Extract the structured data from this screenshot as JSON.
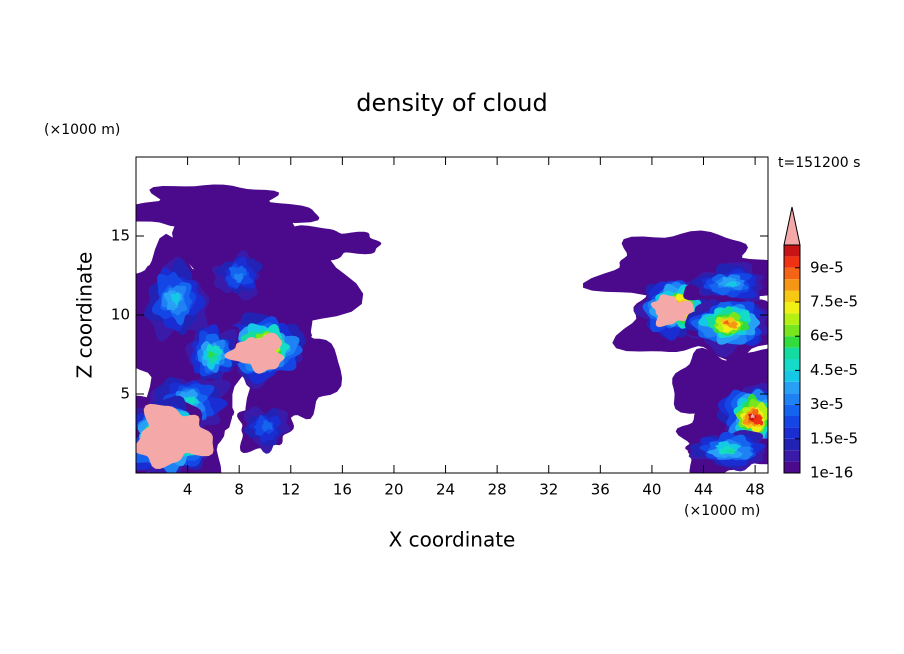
{
  "chart_data": {
    "type": "contour",
    "title": "density of cloud",
    "xlabel": "X coordinate",
    "ylabel": "Z coordinate",
    "x_unit": "(×1000 m)",
    "y_unit": "(×1000 m)",
    "time_label": "t=151200 s",
    "xlim": [
      0,
      49
    ],
    "ylim": [
      0,
      20
    ],
    "xticks": [
      4,
      8,
      12,
      16,
      20,
      24,
      28,
      32,
      36,
      40,
      44,
      48
    ],
    "yticks": [
      5,
      10,
      15
    ],
    "colorbar": {
      "levels": [
        1e-16,
        5e-06,
        1e-05,
        1.5e-05,
        2e-05,
        2.5e-05,
        3e-05,
        3.5e-05,
        4e-05,
        4.5e-05,
        5e-05,
        5.5e-05,
        6e-05,
        6.5e-05,
        7e-05,
        7.5e-05,
        8e-05,
        8.5e-05,
        9e-05,
        9.5e-05,
        0.0001
      ],
      "colors": [
        "#4b0a8c",
        "#3a1aa8",
        "#2222b4",
        "#1a2dd2",
        "#1446e6",
        "#1464f0",
        "#1e82f5",
        "#28a0f5",
        "#14c8e6",
        "#14dcc8",
        "#14dca0",
        "#32dc3c",
        "#78e61e",
        "#b4f014",
        "#f0f014",
        "#f5c814",
        "#f59614",
        "#f56414",
        "#f03214",
        "#c81414"
      ],
      "over_color": "#f5a8a8",
      "ticks": [
        {
          "value": 1e-16,
          "label": "1e-16"
        },
        {
          "value": 1.5e-05,
          "label": "1.5e-5"
        },
        {
          "value": 3e-05,
          "label": "3e-5"
        },
        {
          "value": 4.5e-05,
          "label": "4.5e-5"
        },
        {
          "value": 6e-05,
          "label": "6e-5"
        },
        {
          "value": 7.5e-05,
          "label": "7.5e-5"
        },
        {
          "value": 9e-05,
          "label": "9e-5"
        }
      ]
    }
  }
}
